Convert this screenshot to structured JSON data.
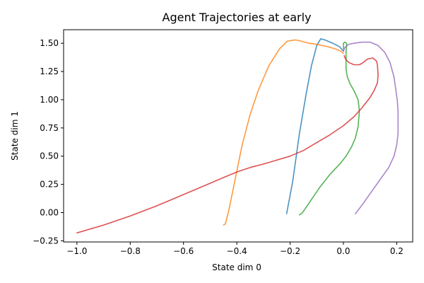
{
  "chart_data": {
    "type": "line",
    "title": "Agent Trajectories at early",
    "xlabel": "State dim 0",
    "ylabel": "State dim 1",
    "xlim": [
      -1.05,
      0.26
    ],
    "ylim": [
      -0.26,
      1.62
    ],
    "xticks": [
      -1.0,
      -0.8,
      -0.6,
      -0.4,
      -0.2,
      0.0,
      0.2
    ],
    "xtick_labels": [
      "−1.0",
      "−0.8",
      "−0.6",
      "−0.4",
      "−0.2",
      "0.0",
      "0.2"
    ],
    "yticks": [
      -0.25,
      0.0,
      0.25,
      0.5,
      0.75,
      1.0,
      1.25,
      1.5
    ],
    "ytick_labels": [
      "−0.25",
      "0.00",
      "0.25",
      "0.50",
      "0.75",
      "1.00",
      "1.25",
      "1.50"
    ],
    "grid": false,
    "legend": false,
    "series": [
      {
        "color": "#1f77b4",
        "points": [
          [
            -0.213,
            -0.01
          ],
          [
            -0.19,
            0.28
          ],
          [
            -0.165,
            0.7
          ],
          [
            -0.14,
            1.05
          ],
          [
            -0.12,
            1.3
          ],
          [
            -0.1,
            1.48
          ],
          [
            -0.085,
            1.54
          ],
          [
            -0.07,
            1.53
          ],
          [
            -0.04,
            1.5
          ],
          [
            -0.015,
            1.47
          ],
          [
            0.0,
            1.43
          ]
        ]
      },
      {
        "color": "#ff7f0e",
        "points": [
          [
            -0.45,
            -0.11
          ],
          [
            -0.443,
            -0.1
          ],
          [
            -0.43,
            0.02
          ],
          [
            -0.41,
            0.25
          ],
          [
            -0.38,
            0.6
          ],
          [
            -0.35,
            0.87
          ],
          [
            -0.32,
            1.08
          ],
          [
            -0.28,
            1.3
          ],
          [
            -0.24,
            1.45
          ],
          [
            -0.21,
            1.52
          ],
          [
            -0.18,
            1.53
          ],
          [
            -0.16,
            1.52
          ],
          [
            -0.13,
            1.5
          ],
          [
            -0.1,
            1.49
          ],
          [
            -0.06,
            1.47
          ],
          [
            -0.03,
            1.45
          ],
          [
            -0.01,
            1.43
          ],
          [
            0.0,
            1.41
          ]
        ]
      },
      {
        "color": "#2ca02c",
        "points": [
          [
            -0.165,
            -0.02
          ],
          [
            -0.155,
            -0.005
          ],
          [
            -0.13,
            0.08
          ],
          [
            -0.09,
            0.22
          ],
          [
            -0.05,
            0.34
          ],
          [
            -0.01,
            0.44
          ],
          [
            0.01,
            0.5
          ],
          [
            0.03,
            0.58
          ],
          [
            0.045,
            0.66
          ],
          [
            0.055,
            0.76
          ],
          [
            0.06,
            0.9
          ],
          [
            0.055,
            1.0
          ],
          [
            0.04,
            1.08
          ],
          [
            0.025,
            1.14
          ],
          [
            0.015,
            1.2
          ],
          [
            0.01,
            1.27
          ],
          [
            0.01,
            1.34
          ],
          [
            0.01,
            1.42
          ],
          [
            0.012,
            1.5
          ],
          [
            0.005,
            1.51
          ],
          [
            0.0,
            1.5
          ],
          [
            0.0,
            1.45
          ]
        ]
      },
      {
        "color": "#d62728",
        "points": [
          [
            -1.0,
            -0.18
          ],
          [
            -0.9,
            -0.11
          ],
          [
            -0.8,
            -0.03
          ],
          [
            -0.7,
            0.06
          ],
          [
            -0.6,
            0.16
          ],
          [
            -0.5,
            0.26
          ],
          [
            -0.44,
            0.32
          ],
          [
            -0.4,
            0.36
          ],
          [
            -0.35,
            0.4
          ],
          [
            -0.3,
            0.43
          ],
          [
            -0.2,
            0.5
          ],
          [
            -0.15,
            0.55
          ],
          [
            -0.1,
            0.62
          ],
          [
            -0.05,
            0.69
          ],
          [
            0.0,
            0.77
          ],
          [
            0.04,
            0.85
          ],
          [
            0.07,
            0.93
          ],
          [
            0.1,
            1.02
          ],
          [
            0.115,
            1.08
          ],
          [
            0.128,
            1.15
          ],
          [
            0.13,
            1.22
          ],
          [
            0.128,
            1.3
          ],
          [
            0.125,
            1.34
          ],
          [
            0.11,
            1.37
          ],
          [
            0.09,
            1.36
          ],
          [
            0.075,
            1.33
          ],
          [
            0.06,
            1.31
          ],
          [
            0.04,
            1.31
          ],
          [
            0.02,
            1.33
          ],
          [
            0.008,
            1.36
          ],
          [
            0.003,
            1.39
          ]
        ]
      },
      {
        "color": "#9467bd",
        "points": [
          [
            0.045,
            -0.01
          ],
          [
            0.055,
            0.02
          ],
          [
            0.08,
            0.1
          ],
          [
            0.11,
            0.2
          ],
          [
            0.14,
            0.3
          ],
          [
            0.17,
            0.4
          ],
          [
            0.19,
            0.5
          ],
          [
            0.2,
            0.6
          ],
          [
            0.205,
            0.7
          ],
          [
            0.205,
            0.8
          ],
          [
            0.205,
            0.9
          ],
          [
            0.202,
            1.0
          ],
          [
            0.19,
            1.2
          ],
          [
            0.175,
            1.33
          ],
          [
            0.155,
            1.42
          ],
          [
            0.13,
            1.48
          ],
          [
            0.1,
            1.51
          ],
          [
            0.07,
            1.51
          ],
          [
            0.04,
            1.5
          ],
          [
            0.02,
            1.49
          ],
          [
            0.005,
            1.46
          ],
          [
            0.0,
            1.43
          ]
        ]
      }
    ]
  }
}
